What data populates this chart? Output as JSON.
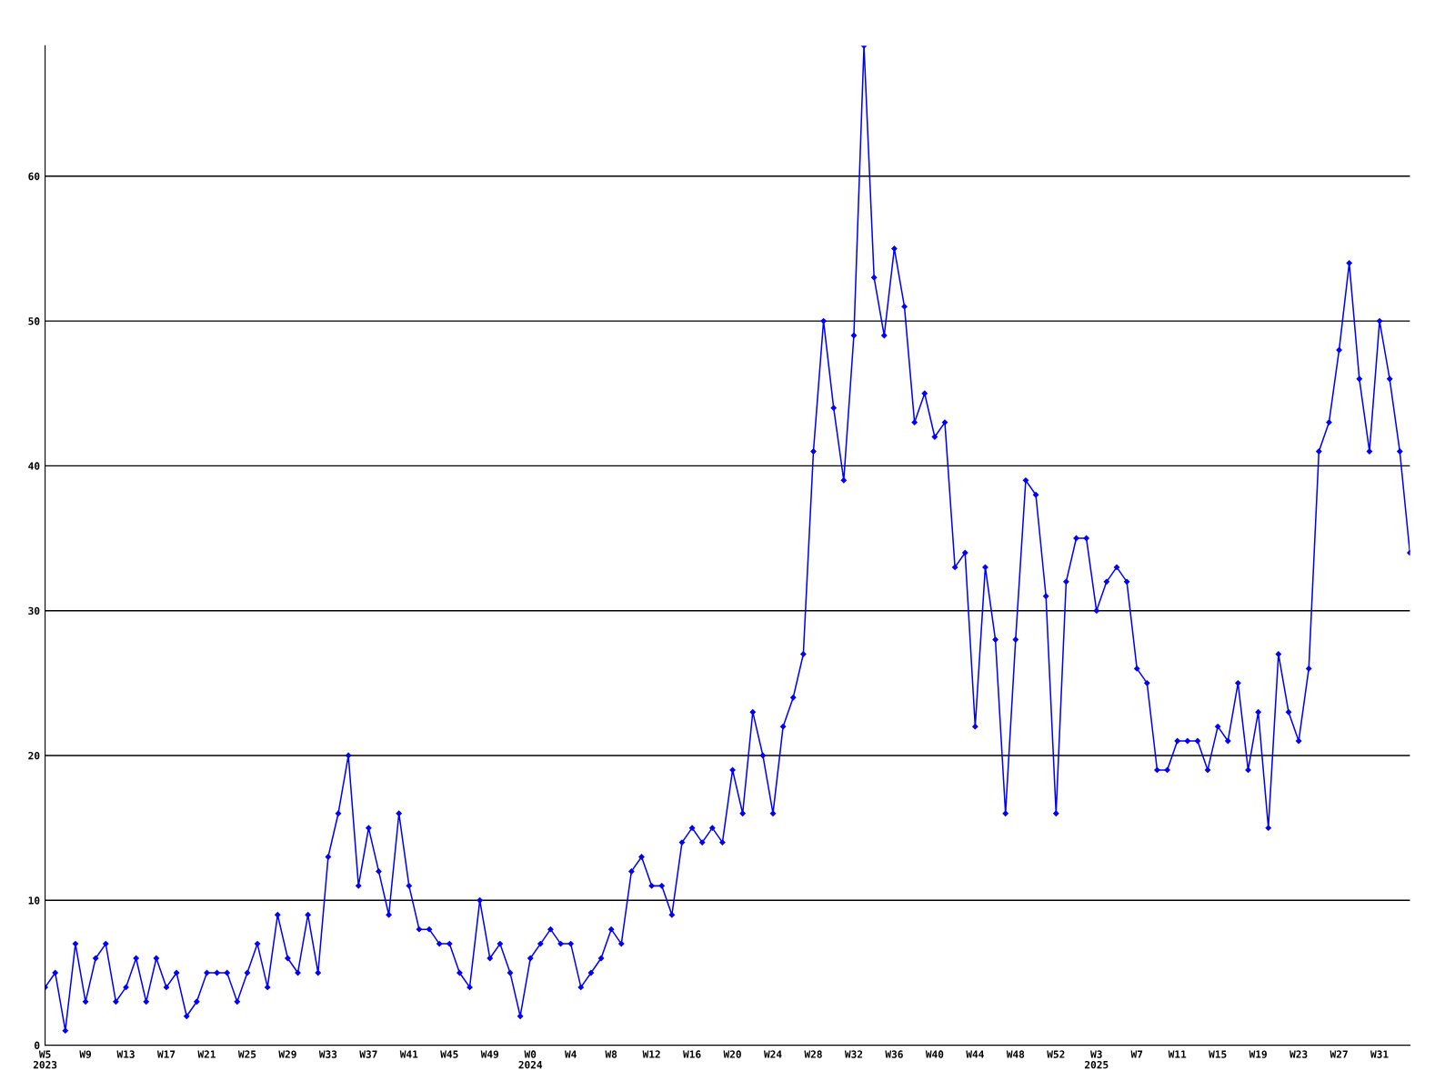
{
  "chart_data": {
    "type": "line",
    "categories": [
      "W5\n2023",
      null,
      null,
      null,
      "W9",
      null,
      null,
      null,
      "W13",
      null,
      null,
      null,
      "W17",
      null,
      null,
      null,
      "W21",
      null,
      null,
      null,
      "W25",
      null,
      null,
      null,
      "W29",
      null,
      null,
      null,
      "W33",
      null,
      null,
      null,
      "W37",
      null,
      null,
      null,
      "W41",
      null,
      null,
      null,
      "W45",
      null,
      null,
      null,
      "W49",
      null,
      null,
      null,
      "W0\n2024",
      null,
      null,
      null,
      "W4",
      null,
      null,
      null,
      "W8",
      null,
      null,
      null,
      "W12",
      null,
      null,
      null,
      "W16",
      null,
      null,
      null,
      "W20",
      null,
      null,
      null,
      "W24",
      null,
      null,
      null,
      "W28",
      null,
      null,
      null,
      "W32",
      null,
      null,
      null,
      "W36",
      null,
      null,
      null,
      "W40",
      null,
      null,
      null,
      "W44",
      null,
      null,
      null,
      "W48",
      null,
      null,
      null,
      "W52",
      null,
      null,
      null,
      "W3\n2025",
      null,
      null,
      null,
      "W7",
      null,
      null,
      null,
      "W11",
      null,
      null,
      null,
      "W15",
      null,
      null,
      null,
      "W19",
      null,
      null,
      null,
      "W23",
      null,
      null,
      null,
      "W27",
      null,
      null,
      null,
      "W31",
      null,
      null,
      null
    ],
    "series": [
      {
        "color": "#0000ff",
        "values": [
          4,
          5,
          1,
          7,
          3,
          6,
          7,
          3,
          4,
          6,
          3,
          6,
          4,
          5,
          2,
          3,
          5,
          5,
          5,
          3,
          5,
          7,
          4,
          9,
          6,
          5,
          9,
          5,
          13,
          16,
          20,
          11,
          15,
          12,
          9,
          16,
          11,
          8,
          8,
          7,
          7,
          5,
          4,
          10,
          6,
          7,
          5,
          2,
          6,
          7,
          8,
          7,
          7,
          4,
          5,
          6,
          8,
          7,
          12,
          13,
          11,
          11,
          9,
          14,
          15,
          14,
          15,
          14,
          19,
          16,
          23,
          20,
          16,
          22,
          24,
          27,
          41,
          50,
          44,
          39,
          49,
          69,
          53,
          49,
          55,
          51,
          43,
          45,
          42,
          43,
          33,
          34,
          22,
          33,
          28,
          16,
          28,
          39,
          38,
          31,
          16,
          32,
          35,
          35,
          30,
          32,
          33,
          32,
          26,
          25,
          19,
          19,
          21,
          21,
          21,
          19,
          22,
          21,
          25,
          19,
          23,
          15,
          27,
          23,
          21,
          26,
          41,
          43,
          48,
          54,
          46,
          41,
          50,
          46,
          41,
          34
        ]
      }
    ],
    "ylim": [
      0,
      69
    ],
    "yticks": [
      0,
      10,
      20,
      30,
      40,
      50,
      60
    ],
    "grid": "y",
    "marker": "diamond",
    "line_style": "solid"
  }
}
